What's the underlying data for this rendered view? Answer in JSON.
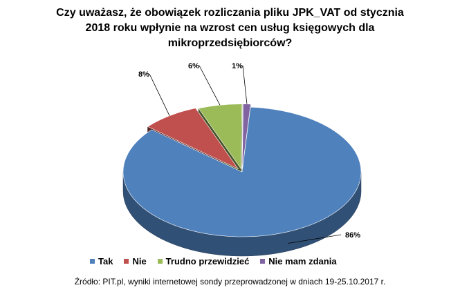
{
  "title_lines": [
    "Czy uważasz, że obowiązek rozliczania pliku JPK_VAT od stycznia",
    "2018 roku wpłynie na wzrost cen usług księgowych dla",
    "mikroprzedsiębiorców?"
  ],
  "source_note": "Źródło: PIT.pl, wyniki internetowej sondy przeprowadzonej w dniach 19-25.10.2017  r.",
  "chart_data": {
    "type": "pie",
    "title": "Czy uważasz, że obowiązek rozliczania pliku JPK_VAT od stycznia 2018 roku wpłynie na wzrost cen usług księgowych dla mikroprzedsiębiorców?",
    "categories": [
      "Tak",
      "Nie",
      "Trudno przewidzieć",
      "Nie mam zdania"
    ],
    "values": [
      86,
      8,
      6,
      1
    ],
    "data_labels": [
      "86%",
      "8%",
      "6%",
      "1%"
    ],
    "colors": [
      "#4F81BD",
      "#C0504D",
      "#9BBB59",
      "#8064A2"
    ],
    "style": "3d-exploded",
    "legend": "bottom"
  }
}
